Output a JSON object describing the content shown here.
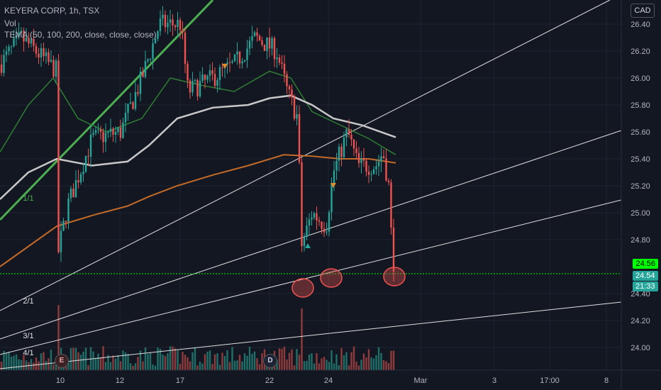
{
  "header": {
    "symbol_line": "KEYERA CORP, 1h, TSX",
    "vol_label": "Vol",
    "tema_label": "TEMA (50, 100, 200, close, close, close)"
  },
  "currency_button": "CAD",
  "price_tags": {
    "last_price_line": "24.56",
    "current_price": "24.54",
    "countdown": "21:33"
  },
  "events": {
    "earnings": "E",
    "dividend": "D"
  },
  "colors": {
    "background": "#131722",
    "up": "#26a69a",
    "down": "#ef5350",
    "vol_up": "#1f6e67",
    "vol_down": "#8e3b3d",
    "tema50": "#2e7d32",
    "tema100": "#c8c8c8",
    "tema200": "#c46a28",
    "trend": "#4caf50",
    "fan": "#e0e0e0",
    "price_line": "#00ff00",
    "tag_bg": "#26a69a"
  },
  "chart_data": {
    "type": "candlestick",
    "title": "KEYERA CORP, 1h, TSX",
    "ylabel": "CAD",
    "ylim": [
      23.9,
      26.5
    ],
    "x_ticks": [
      "10",
      "12",
      "17",
      "22",
      "24",
      "Mar",
      "3",
      "17:00",
      "8"
    ],
    "y_ticks": [
      "26.40",
      "26.20",
      "26.00",
      "25.80",
      "25.60",
      "25.40",
      "25.20",
      "25.00",
      "24.80",
      "24.40",
      "24.20",
      "24.00"
    ],
    "grid": true,
    "gann_fan_labels": [
      "1/1",
      "2/1",
      "3/1",
      "4/1"
    ],
    "series": [
      {
        "name": "TEMA (50, 100, 200, close, close, close)",
        "kind": "overlay"
      },
      {
        "name": "Vol",
        "kind": "volume"
      }
    ],
    "last_price": 24.56,
    "current_price": 24.54
  }
}
